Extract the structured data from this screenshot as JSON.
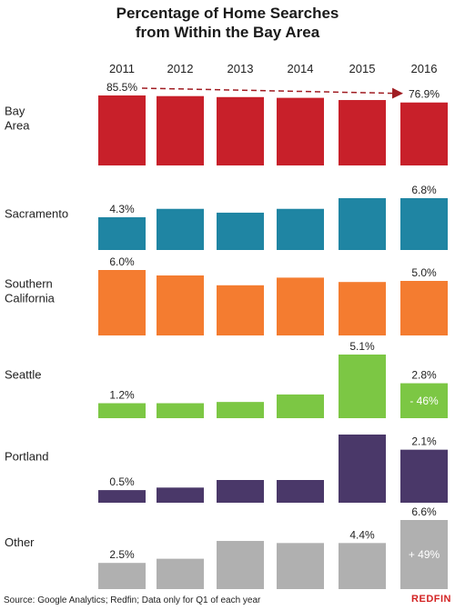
{
  "title_line1": "Percentage of Home Searches",
  "title_line2": "from Within the Bay Area",
  "source": "Source: Google Analytics; Redfin; Data only for Q1 of each year",
  "brand": "REDFIN",
  "chart_data": {
    "type": "bar",
    "categories": [
      "2011",
      "2012",
      "2013",
      "2014",
      "2015",
      "2016"
    ],
    "series": [
      {
        "name": "Bay Area",
        "color": "#c8202a",
        "values": [
          85.5,
          84.7,
          83.5,
          82.6,
          79.9,
          76.9
        ]
      },
      {
        "name": "Sacramento",
        "color": "#1f85a3",
        "values": [
          4.3,
          5.4,
          4.9,
          5.4,
          6.8,
          6.8
        ]
      },
      {
        "name": "Southern California",
        "color": "#f47c30",
        "values": [
          6.0,
          5.5,
          4.6,
          5.3,
          4.9,
          5.0
        ]
      },
      {
        "name": "Seattle",
        "color": "#7cc744",
        "values": [
          1.2,
          1.2,
          1.3,
          1.9,
          5.1,
          2.8
        ]
      },
      {
        "name": "Portland",
        "color": "#4a3869",
        "values": [
          0.5,
          0.6,
          0.9,
          0.9,
          2.7,
          2.1
        ]
      },
      {
        "name": "Other",
        "color": "#b0b0b0",
        "values": [
          2.5,
          2.9,
          4.6,
          4.4,
          4.4,
          6.6
        ]
      }
    ],
    "data_labels": [
      {
        "series": 0,
        "index": 0,
        "text": "85.5%"
      },
      {
        "series": 0,
        "index": 5,
        "text": "76.9%"
      },
      {
        "series": 1,
        "index": 0,
        "text": "4.3%"
      },
      {
        "series": 1,
        "index": 5,
        "text": "6.8%"
      },
      {
        "series": 2,
        "index": 0,
        "text": "6.0%"
      },
      {
        "series": 2,
        "index": 5,
        "text": "5.0%"
      },
      {
        "series": 3,
        "index": 0,
        "text": "1.2%"
      },
      {
        "series": 3,
        "index": 4,
        "text": "5.1%"
      },
      {
        "series": 3,
        "index": 5,
        "text": "2.8%"
      },
      {
        "series": 4,
        "index": 0,
        "text": "0.5%"
      },
      {
        "series": 4,
        "index": 5,
        "text": "2.1%"
      },
      {
        "series": 5,
        "index": 0,
        "text": "2.5%"
      },
      {
        "series": 5,
        "index": 4,
        "text": "4.4%"
      },
      {
        "series": 5,
        "index": 5,
        "text": "6.6%"
      }
    ],
    "inner_labels": [
      {
        "series": 3,
        "index": 5,
        "text": "- 46%"
      },
      {
        "series": 5,
        "index": 5,
        "text": "+ 49%"
      }
    ],
    "trend_arrow": {
      "series": 0,
      "from_index": 0,
      "to_index": 5,
      "color": "#a01c22",
      "style": "dashed"
    }
  }
}
